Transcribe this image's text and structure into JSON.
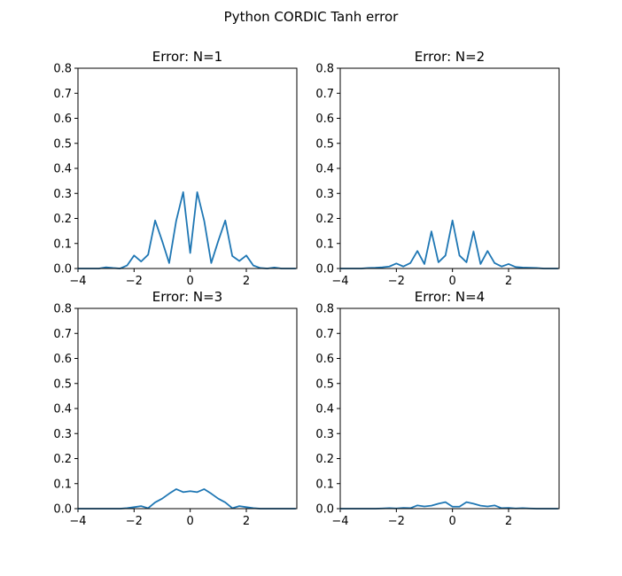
{
  "figure": {
    "suptitle": "Python CORDIC Tanh error",
    "line_color": "#1f77b4"
  },
  "chart_data": [
    {
      "type": "line",
      "title": "Error: N=1",
      "xlim": [
        -4,
        3.8
      ],
      "ylim": [
        0,
        0.8
      ],
      "xticks": [
        -4,
        -2,
        0,
        2
      ],
      "xtick_labels": [
        "−4",
        "−2",
        "0",
        "2"
      ],
      "yticks": [
        0,
        0.1,
        0.2,
        0.3,
        0.4,
        0.5,
        0.6,
        0.7,
        0.8
      ],
      "ytick_labels": [
        "0.0",
        "0.1",
        "0.2",
        "0.3",
        "0.4",
        "0.5",
        "0.6",
        "0.7",
        "0.8"
      ],
      "grid": false,
      "x": [
        -4.0,
        -3.75,
        -3.5,
        -3.25,
        -3.0,
        -2.75,
        -2.5,
        -2.25,
        -2.0,
        -1.75,
        -1.5,
        -1.25,
        -1.0,
        -0.75,
        -0.5,
        -0.25,
        0.0,
        0.25,
        0.5,
        0.75,
        1.0,
        1.25,
        1.5,
        1.75,
        2.0,
        2.25,
        2.5,
        2.75,
        3.0,
        3.25,
        3.5,
        3.75
      ],
      "y": [
        0.0,
        0.0,
        0.0,
        0.0,
        0.005,
        0.002,
        0.0,
        0.012,
        0.052,
        0.028,
        0.055,
        0.192,
        0.11,
        0.022,
        0.19,
        0.305,
        0.062,
        0.305,
        0.19,
        0.022,
        0.11,
        0.192,
        0.05,
        0.03,
        0.052,
        0.012,
        0.002,
        0.0,
        0.004,
        0.0,
        0.0,
        0.0
      ]
    },
    {
      "type": "line",
      "title": "Error: N=2",
      "xlim": [
        -4,
        3.8
      ],
      "ylim": [
        0,
        0.8
      ],
      "xticks": [
        -4,
        -2,
        0,
        2
      ],
      "xtick_labels": [
        "−4",
        "−2",
        "0",
        "2"
      ],
      "yticks": [
        0,
        0.1,
        0.2,
        0.3,
        0.4,
        0.5,
        0.6,
        0.7,
        0.8
      ],
      "ytick_labels": [
        "0.0",
        "0.1",
        "0.2",
        "0.3",
        "0.4",
        "0.5",
        "0.6",
        "0.7",
        "0.8"
      ],
      "grid": false,
      "x": [
        -4.0,
        -3.75,
        -3.5,
        -3.25,
        -3.0,
        -2.75,
        -2.5,
        -2.25,
        -2.0,
        -1.75,
        -1.5,
        -1.25,
        -1.0,
        -0.75,
        -0.5,
        -0.25,
        0.0,
        0.25,
        0.5,
        0.75,
        1.0,
        1.25,
        1.5,
        1.75,
        2.0,
        2.25,
        2.5,
        2.75,
        3.0,
        3.25,
        3.5,
        3.75
      ],
      "y": [
        0.0,
        0.0,
        0.0,
        0.0,
        0.002,
        0.003,
        0.005,
        0.008,
        0.02,
        0.008,
        0.022,
        0.07,
        0.018,
        0.148,
        0.025,
        0.052,
        0.192,
        0.052,
        0.025,
        0.148,
        0.018,
        0.07,
        0.022,
        0.008,
        0.018,
        0.006,
        0.004,
        0.003,
        0.002,
        0.0,
        0.0,
        0.0
      ]
    },
    {
      "type": "line",
      "title": "Error: N=3",
      "xlim": [
        -4,
        3.8
      ],
      "ylim": [
        0,
        0.8
      ],
      "xticks": [
        -4,
        -2,
        0,
        2
      ],
      "xtick_labels": [
        "−4",
        "−2",
        "0",
        "2"
      ],
      "yticks": [
        0,
        0.1,
        0.2,
        0.3,
        0.4,
        0.5,
        0.6,
        0.7,
        0.8
      ],
      "ytick_labels": [
        "0.0",
        "0.1",
        "0.2",
        "0.3",
        "0.4",
        "0.5",
        "0.6",
        "0.7",
        "0.8"
      ],
      "grid": false,
      "x": [
        -4.0,
        -3.75,
        -3.5,
        -3.25,
        -3.0,
        -2.75,
        -2.5,
        -2.25,
        -2.0,
        -1.75,
        -1.5,
        -1.25,
        -1.0,
        -0.75,
        -0.5,
        -0.25,
        0.0,
        0.25,
        0.5,
        0.75,
        1.0,
        1.25,
        1.5,
        1.75,
        2.0,
        2.25,
        2.5,
        2.75,
        3.0,
        3.25,
        3.5,
        3.75
      ],
      "y": [
        0.0,
        0.0,
        0.0,
        0.0,
        0.0,
        0.0,
        0.0,
        0.002,
        0.006,
        0.01,
        0.002,
        0.025,
        0.04,
        0.06,
        0.078,
        0.066,
        0.07,
        0.066,
        0.078,
        0.06,
        0.04,
        0.025,
        0.002,
        0.01,
        0.006,
        0.002,
        0.0,
        0.0,
        0.0,
        0.0,
        0.0,
        0.0
      ]
    },
    {
      "type": "line",
      "title": "Error: N=4",
      "xlim": [
        -4,
        3.8
      ],
      "ylim": [
        0,
        0.8
      ],
      "xticks": [
        -4,
        -2,
        0,
        2
      ],
      "xtick_labels": [
        "−4",
        "−2",
        "0",
        "2"
      ],
      "yticks": [
        0,
        0.1,
        0.2,
        0.3,
        0.4,
        0.5,
        0.6,
        0.7,
        0.8
      ],
      "ytick_labels": [
        "0.0",
        "0.1",
        "0.2",
        "0.3",
        "0.4",
        "0.5",
        "0.6",
        "0.7",
        "0.8"
      ],
      "grid": false,
      "x": [
        -4.0,
        -3.75,
        -3.5,
        -3.25,
        -3.0,
        -2.75,
        -2.5,
        -2.25,
        -2.0,
        -1.75,
        -1.5,
        -1.25,
        -1.0,
        -0.75,
        -0.5,
        -0.25,
        0.0,
        0.25,
        0.5,
        0.75,
        1.0,
        1.25,
        1.5,
        1.75,
        2.0,
        2.25,
        2.5,
        2.75,
        3.0,
        3.25,
        3.5,
        3.75
      ],
      "y": [
        0.0,
        0.0,
        0.0,
        0.0,
        0.0,
        0.0,
        0.001,
        0.002,
        0.001,
        0.003,
        0.002,
        0.013,
        0.009,
        0.012,
        0.02,
        0.026,
        0.008,
        0.008,
        0.026,
        0.02,
        0.012,
        0.009,
        0.013,
        0.002,
        0.003,
        0.001,
        0.002,
        0.001,
        0.0,
        0.0,
        0.0,
        0.0
      ]
    }
  ]
}
